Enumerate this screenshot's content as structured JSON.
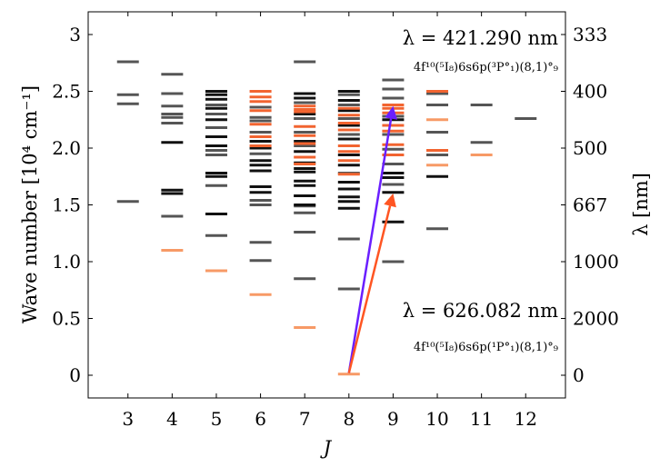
{
  "chart_data": {
    "type": "scatter",
    "marker": "horizontal-dash",
    "xlabel": "J",
    "ylabel": "Wave number [10⁴ cm⁻¹]",
    "y2label": "λ [nm]",
    "xticks": [
      3,
      4,
      5,
      6,
      7,
      8,
      9,
      10,
      11,
      12
    ],
    "yticks": [
      0,
      0.5,
      1.0,
      1.5,
      2.0,
      2.5,
      3
    ],
    "ytick_labels": [
      "0",
      "0.5",
      "1.0",
      "1.5",
      "2.0",
      "2.5",
      "3"
    ],
    "y2_ticks": [
      {
        "label": "333",
        "wavenumber": 3.0
      },
      {
        "label": "400",
        "wavenumber": 2.5
      },
      {
        "label": "500",
        "wavenumber": 2.0
      },
      {
        "label": "667",
        "wavenumber": 1.5
      },
      {
        "label": "1000",
        "wavenumber": 1.0
      },
      {
        "label": "2000",
        "wavenumber": 0.5
      },
      {
        "label": "0",
        "wavenumber": 0
      }
    ],
    "xlim": [
      2.1,
      12.9
    ],
    "ylim": [
      -0.2,
      3.2
    ],
    "colors": {
      "dark": "#111111",
      "gray": "#555555",
      "orange": "#f26430",
      "lightorange": "#f79a66",
      "purple": "#6a1fff",
      "red": "#ff5522"
    },
    "series": [
      {
        "color": "gray",
        "points": [
          [
            3,
            2.76
          ],
          [
            3,
            2.47
          ],
          [
            3,
            2.39
          ],
          [
            3,
            1.53
          ],
          [
            4,
            2.65
          ],
          [
            4,
            2.48
          ],
          [
            4,
            2.37
          ],
          [
            4,
            2.3
          ],
          [
            4,
            2.27
          ],
          [
            4,
            2.22
          ],
          [
            4,
            1.4
          ],
          [
            5,
            2.38
          ],
          [
            5,
            2.3
          ],
          [
            5,
            2.18
          ],
          [
            5,
            1.98
          ],
          [
            5,
            1.94
          ],
          [
            5,
            1.67
          ],
          [
            5,
            1.23
          ],
          [
            6,
            2.36
          ],
          [
            6,
            2.27
          ],
          [
            6,
            2.24
          ],
          [
            6,
            2.14
          ],
          [
            6,
            1.95
          ],
          [
            6,
            1.54
          ],
          [
            6,
            1.5
          ],
          [
            6,
            1.17
          ],
          [
            6,
            1.01
          ],
          [
            7,
            2.76
          ],
          [
            7,
            2.4
          ],
          [
            7,
            2.26
          ],
          [
            7,
            2.14
          ],
          [
            7,
            2.02
          ],
          [
            7,
            1.58
          ],
          [
            7,
            1.49
          ],
          [
            7,
            1.43
          ],
          [
            7,
            1.26
          ],
          [
            7,
            0.85
          ],
          [
            8,
            2.47
          ],
          [
            8,
            2.38
          ],
          [
            8,
            2.26
          ],
          [
            8,
            2.12
          ],
          [
            8,
            1.78
          ],
          [
            8,
            1.2
          ],
          [
            8,
            0.76
          ],
          [
            9,
            2.6
          ],
          [
            9,
            2.52
          ],
          [
            9,
            2.44
          ],
          [
            9,
            2.28
          ],
          [
            9,
            2.12
          ],
          [
            9,
            1.99
          ],
          [
            9,
            1.86
          ],
          [
            9,
            1.68
          ],
          [
            9,
            1.0
          ],
          [
            10,
            2.48
          ],
          [
            10,
            2.38
          ],
          [
            10,
            2.14
          ],
          [
            10,
            1.94
          ],
          [
            10,
            1.29
          ],
          [
            11,
            2.38
          ],
          [
            11,
            2.05
          ],
          [
            12,
            2.26
          ]
        ]
      },
      {
        "color": "dark",
        "points": [
          [
            4,
            2.05
          ],
          [
            4,
            1.63
          ],
          [
            4,
            1.6
          ],
          [
            5,
            2.5
          ],
          [
            5,
            2.47
          ],
          [
            5,
            2.43
          ],
          [
            5,
            2.35
          ],
          [
            5,
            2.25
          ],
          [
            5,
            2.1
          ],
          [
            5,
            2.02
          ],
          [
            5,
            1.78
          ],
          [
            5,
            1.75
          ],
          [
            5,
            1.42
          ],
          [
            6,
            2.06
          ],
          [
            6,
            2.0
          ],
          [
            6,
            1.89
          ],
          [
            6,
            1.85
          ],
          [
            6,
            1.8
          ],
          [
            6,
            1.66
          ],
          [
            6,
            1.61
          ],
          [
            7,
            2.48
          ],
          [
            7,
            2.44
          ],
          [
            7,
            2.3
          ],
          [
            7,
            2.06
          ],
          [
            7,
            1.97
          ],
          [
            7,
            1.87
          ],
          [
            7,
            1.82
          ],
          [
            7,
            1.79
          ],
          [
            7,
            1.71
          ],
          [
            7,
            1.67
          ],
          [
            7,
            1.58
          ],
          [
            7,
            1.5
          ],
          [
            8,
            2.5
          ],
          [
            8,
            2.42
          ],
          [
            8,
            2.33
          ],
          [
            8,
            2.2
          ],
          [
            8,
            2.08
          ],
          [
            8,
            1.94
          ],
          [
            8,
            1.85
          ],
          [
            8,
            1.7
          ],
          [
            8,
            1.64
          ],
          [
            8,
            1.57
          ],
          [
            8,
            1.53
          ],
          [
            8,
            1.47
          ],
          [
            9,
            2.25
          ],
          [
            9,
            1.78
          ],
          [
            9,
            1.74
          ],
          [
            9,
            1.61
          ],
          [
            9,
            1.35
          ],
          [
            10,
            1.75
          ]
        ]
      },
      {
        "color": "orange",
        "points": [
          [
            6,
            2.5
          ],
          [
            6,
            2.45
          ],
          [
            6,
            2.41
          ],
          [
            6,
            2.33
          ],
          [
            6,
            2.21
          ],
          [
            6,
            2.1
          ],
          [
            6,
            2.02
          ],
          [
            7,
            2.37
          ],
          [
            7,
            2.34
          ],
          [
            7,
            2.32
          ],
          [
            7,
            2.19
          ],
          [
            7,
            2.11
          ],
          [
            7,
            2.04
          ],
          [
            7,
            1.92
          ],
          [
            7,
            1.86
          ],
          [
            8,
            2.35
          ],
          [
            8,
            2.29
          ],
          [
            8,
            2.22
          ],
          [
            8,
            2.16
          ],
          [
            8,
            2.02
          ],
          [
            8,
            1.97
          ],
          [
            8,
            1.89
          ],
          [
            8,
            1.77
          ],
          [
            9,
            2.38
          ],
          [
            9,
            2.35
          ],
          [
            9,
            2.31
          ],
          [
            9,
            2.2
          ],
          [
            9,
            2.15
          ],
          [
            9,
            2.03
          ],
          [
            9,
            1.94
          ],
          [
            10,
            2.5
          ],
          [
            10,
            1.98
          ]
        ]
      },
      {
        "color": "lightorange",
        "points": [
          [
            4,
            1.1
          ],
          [
            5,
            0.92
          ],
          [
            6,
            0.71
          ],
          [
            7,
            0.42
          ],
          [
            8,
            0.01
          ],
          [
            10,
            2.25
          ],
          [
            10,
            1.85
          ],
          [
            11,
            1.94
          ]
        ]
      }
    ],
    "arrows": [
      {
        "color": "purple",
        "from": [
          8,
          0.02
        ],
        "to": [
          9,
          2.37
        ]
      },
      {
        "color": "red",
        "from": [
          8,
          0.02
        ],
        "to": [
          9,
          1.6
        ]
      }
    ],
    "annotations": [
      {
        "color": "purple",
        "wavelength": "λ = 421.290 nm",
        "config": "4f¹⁰(⁵I₈)6s6p(³P°₁)(8,1)°₉"
      },
      {
        "color": "red",
        "wavelength": "λ = 626.082 nm",
        "config": "4f¹⁰(⁵I₈)6s6p(¹P°₁)(8,1)°₉"
      }
    ]
  }
}
